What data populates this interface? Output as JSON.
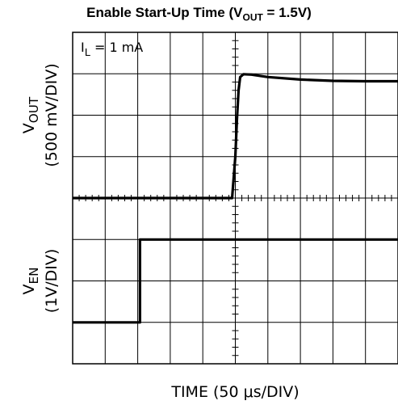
{
  "title": {
    "prefix": "Enable Start-Up Time (V",
    "sub": "OUT",
    "suffix": " = 1.5V)"
  },
  "chart_data": [
    {
      "type": "line",
      "name": "upper-trace",
      "annotation": {
        "main": "I",
        "sub": "L",
        "rest": " = 1 mA"
      },
      "ylabel": {
        "main": "V",
        "sub": "OUT",
        "units": "(500 mV/DIV)"
      },
      "x_unit": "div",
      "y_unit": "div",
      "xlim": [
        0,
        10
      ],
      "ylim_divs": [
        0,
        4
      ],
      "series": [
        {
          "x": [
            0,
            4.9,
            5.0,
            5.05,
            5.1,
            5.15,
            5.25,
            5.5,
            6.0,
            7.0,
            8.0,
            9.0,
            10.0
          ],
          "y": [
            0,
            0,
            1.0,
            1.9,
            2.6,
            2.92,
            2.99,
            2.98,
            2.92,
            2.86,
            2.83,
            2.82,
            2.82
          ]
        }
      ]
    },
    {
      "type": "line",
      "name": "lower-trace",
      "ylabel": {
        "main": "V",
        "sub": "EN",
        "units": "(1V/DIV)"
      },
      "x_unit": "div",
      "y_unit": "div",
      "xlim": [
        0,
        10
      ],
      "ylim_divs": [
        0,
        4
      ],
      "series": [
        {
          "x": [
            0,
            2.07,
            2.07,
            10
          ],
          "y": [
            0,
            0,
            2,
            2
          ]
        }
      ]
    }
  ],
  "xlabel": "TIME (50 μs/DIV)",
  "grid": {
    "x_divisions": 10,
    "y_divisions": 8,
    "minor_ticks_per_div": 5
  }
}
